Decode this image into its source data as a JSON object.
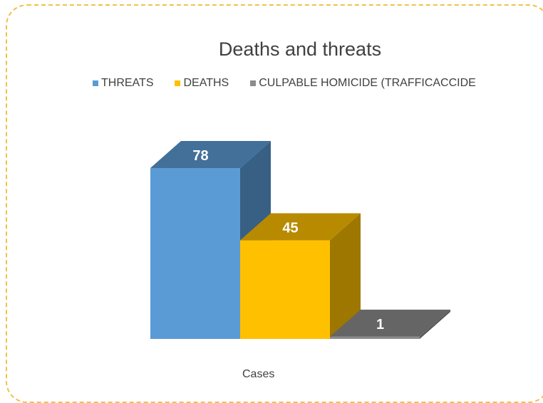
{
  "chart_data": {
    "type": "bar",
    "title": "Deaths and threats",
    "xlabel": "Cases",
    "ylabel": "",
    "categories": [
      "Cases"
    ],
    "series": [
      {
        "name": "THREATS",
        "values": [
          78
        ],
        "color": "#5b9bd5"
      },
      {
        "name": "DEATHS",
        "values": [
          45
        ],
        "color": "#ffc000"
      },
      {
        "name": "CULPABLE HOMICIDE (TRAFFICACCIDE",
        "values": [
          1
        ],
        "color": "#8c8c8c"
      }
    ],
    "data_labels": [
      "78",
      "45",
      "1"
    ],
    "legend_position": "top",
    "grid": false,
    "ylim": [
      0,
      80
    ]
  }
}
